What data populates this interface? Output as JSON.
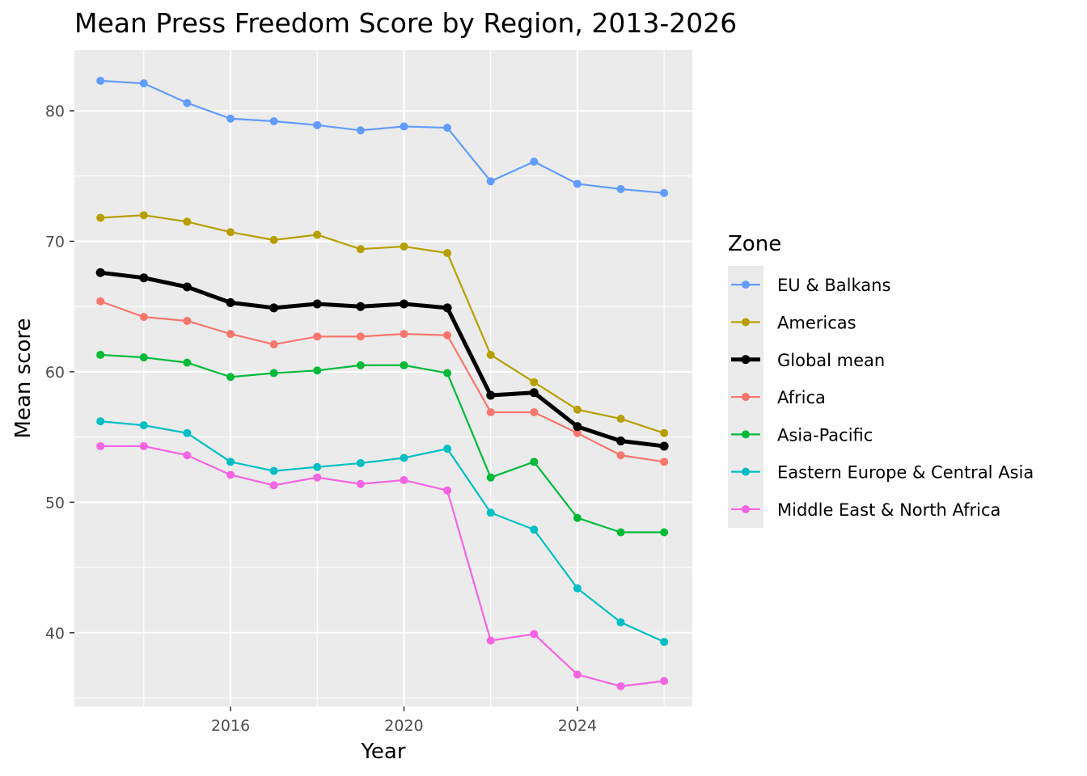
{
  "chart_data": {
    "type": "line",
    "title": "Mean Press Freedom Score by Region, 2013-2026",
    "xlabel": "Year",
    "ylabel": "Mean score",
    "x": [
      2013,
      2014,
      2015,
      2016,
      2017,
      2018,
      2019,
      2020,
      2021,
      2022,
      2023,
      2024,
      2025,
      2026
    ],
    "xlim": [
      2012.4,
      2026.65
    ],
    "ylim": [
      34.35,
      84.65
    ],
    "x_ticks": [
      2016,
      2020,
      2024
    ],
    "x_tick_labels": [
      "2016",
      "2020",
      "2024"
    ],
    "y_ticks": [
      40,
      50,
      60,
      70,
      80
    ],
    "y_tick_labels": [
      "40",
      "50",
      "60",
      "70",
      "80"
    ],
    "grid": true,
    "legend": {
      "title": "Zone",
      "position": "right"
    },
    "series": [
      {
        "name": "EU & Balkans",
        "color": "#619CFF",
        "highlight": false,
        "values": [
          82.3,
          82.1,
          80.6,
          79.4,
          79.2,
          78.9,
          78.5,
          78.8,
          78.7,
          74.6,
          76.1,
          74.4,
          74.0,
          73.7
        ]
      },
      {
        "name": "Americas",
        "color": "#B79F00",
        "highlight": false,
        "values": [
          71.8,
          72.0,
          71.5,
          70.7,
          70.1,
          70.5,
          69.4,
          69.6,
          69.1,
          61.3,
          59.2,
          57.1,
          56.4,
          55.3
        ]
      },
      {
        "name": "Global mean",
        "color": "#000000",
        "highlight": true,
        "values": [
          67.6,
          67.2,
          66.5,
          65.3,
          64.9,
          65.2,
          65.0,
          65.2,
          64.9,
          58.2,
          58.4,
          55.8,
          54.7,
          54.3
        ]
      },
      {
        "name": "Africa",
        "color": "#F8766D",
        "highlight": false,
        "values": [
          65.4,
          64.2,
          63.9,
          62.9,
          62.1,
          62.7,
          62.7,
          62.9,
          62.8,
          56.9,
          56.9,
          55.3,
          53.6,
          53.1
        ]
      },
      {
        "name": "Asia-Pacific",
        "color": "#00BA38",
        "highlight": false,
        "values": [
          61.3,
          61.1,
          60.7,
          59.6,
          59.9,
          60.1,
          60.5,
          60.5,
          59.9,
          51.9,
          53.1,
          48.8,
          47.7,
          47.7
        ]
      },
      {
        "name": "Eastern Europe & Central Asia",
        "color": "#00BFC4",
        "highlight": false,
        "values": [
          56.2,
          55.9,
          55.3,
          53.1,
          52.4,
          52.7,
          53.0,
          53.4,
          54.1,
          49.2,
          47.9,
          43.4,
          40.8,
          39.3
        ]
      },
      {
        "name": "Middle East & North Africa",
        "color": "#F564E3",
        "highlight": false,
        "values": [
          54.3,
          54.3,
          53.6,
          52.1,
          51.3,
          51.9,
          51.4,
          51.7,
          50.9,
          39.4,
          39.9,
          36.8,
          35.9,
          36.3
        ]
      }
    ]
  }
}
